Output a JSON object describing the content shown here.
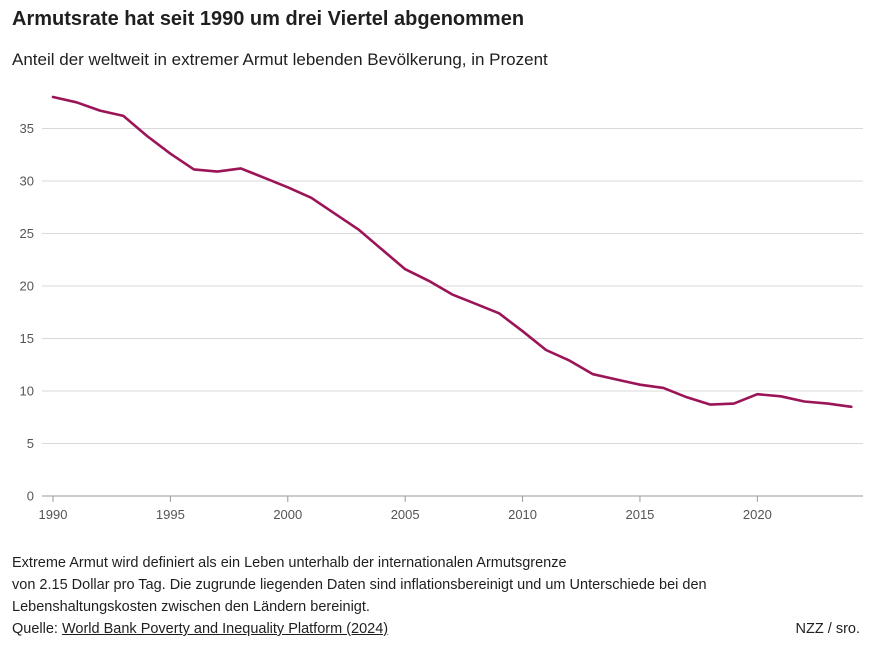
{
  "header": {
    "title": "Armutsrate hat seit 1990 um drei Viertel abgenommen",
    "subtitle": "Anteil der weltweit in extremer Armut lebenden Bevölkerung, in Prozent"
  },
  "chart_data": {
    "type": "line",
    "x": [
      1990,
      1991,
      1992,
      1993,
      1994,
      1995,
      1996,
      1997,
      1998,
      1999,
      2000,
      2001,
      2002,
      2003,
      2004,
      2005,
      2006,
      2007,
      2008,
      2009,
      2010,
      2011,
      2012,
      2013,
      2014,
      2015,
      2016,
      2017,
      2018,
      2019,
      2020,
      2021,
      2022,
      2023,
      2024
    ],
    "series": [
      {
        "values": [
          38.0,
          37.5,
          36.7,
          36.2,
          34.3,
          32.6,
          31.1,
          30.9,
          31.2,
          30.3,
          29.4,
          28.4,
          26.9,
          25.4,
          23.5,
          21.6,
          20.5,
          19.2,
          18.3,
          17.4,
          15.7,
          13.9,
          12.9,
          11.6,
          11.1,
          10.6,
          10.3,
          9.4,
          8.7,
          8.8,
          9.7,
          9.5,
          9.0,
          8.8,
          8.5
        ],
        "color": "#9c1458"
      }
    ],
    "xticks": [
      "1990",
      "1995",
      "2000",
      "2005",
      "2010",
      "2015",
      "2020"
    ],
    "yticks": [
      "0",
      "5",
      "10",
      "15",
      "20",
      "25",
      "30",
      "35"
    ],
    "xlim": [
      1990,
      2024.5
    ],
    "ylim": [
      0,
      38
    ],
    "grid": true,
    "title": "",
    "xlabel": "",
    "ylabel": ""
  },
  "footer": {
    "note_line1": "Extreme Armut wird definiert als ein Leben unterhalb der internationalen Armutsgrenze",
    "note_line2": "von 2.15 Dollar pro Tag. Die zugrunde liegenden Daten sind inflationsbereinigt und um Unterschiede bei den",
    "note_line3": "Lebenshaltungskosten zwischen den Ländern bereinigt.",
    "source_label": "Quelle: ",
    "source_link": "World Bank Poverty and Inequality Platform (2024)",
    "credit": "NZZ / sro."
  }
}
